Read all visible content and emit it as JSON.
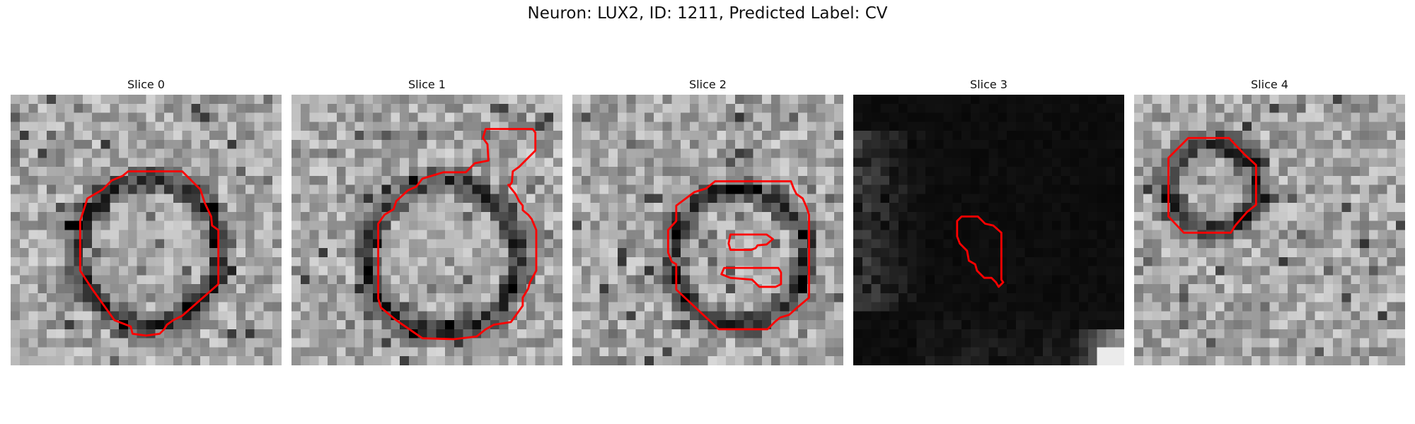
{
  "figure": {
    "title": "Neuron: LUX2, ID: 1211, Predicted Label: CV"
  },
  "contour_color": "#ff0000",
  "panels": [
    {
      "title": "Slice 0",
      "kind": "ring"
    },
    {
      "title": "Slice 1",
      "kind": "ring"
    },
    {
      "title": "Slice 2",
      "kind": "ring"
    },
    {
      "title": "Slice 3",
      "kind": "dark"
    },
    {
      "title": "Slice 4",
      "kind": "ring"
    }
  ]
}
